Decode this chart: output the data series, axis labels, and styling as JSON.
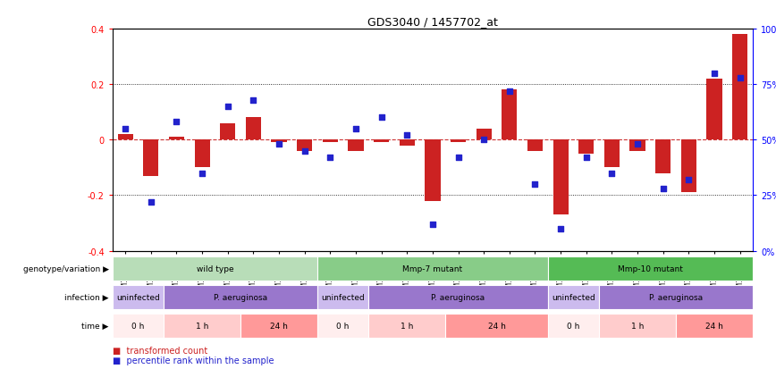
{
  "title": "GDS3040 / 1457702_at",
  "samples": [
    "GSM196062",
    "GSM196063",
    "GSM196064",
    "GSM196065",
    "GSM196066",
    "GSM196067",
    "GSM196068",
    "GSM196069",
    "GSM196070",
    "GSM196071",
    "GSM196072",
    "GSM196073",
    "GSM196074",
    "GSM196075",
    "GSM196076",
    "GSM196077",
    "GSM196078",
    "GSM196079",
    "GSM196080",
    "GSM196081",
    "GSM196082",
    "GSM196083",
    "GSM196084",
    "GSM196085",
    "GSM196086"
  ],
  "bar_values": [
    0.02,
    -0.13,
    0.01,
    -0.1,
    0.06,
    0.08,
    -0.01,
    -0.04,
    -0.01,
    -0.04,
    -0.01,
    -0.02,
    -0.22,
    -0.01,
    0.04,
    0.18,
    -0.04,
    -0.27,
    -0.05,
    -0.1,
    -0.04,
    -0.12,
    -0.19,
    0.22,
    0.38
  ],
  "dot_values": [
    55,
    22,
    58,
    35,
    65,
    68,
    48,
    45,
    42,
    55,
    60,
    52,
    12,
    42,
    50,
    72,
    30,
    10,
    42,
    35,
    48,
    28,
    32,
    80,
    78
  ],
  "genotype_groups": [
    {
      "label": "wild type",
      "start": 0,
      "end": 8,
      "color": "#b8ddb8"
    },
    {
      "label": "Mmp-7 mutant",
      "start": 8,
      "end": 17,
      "color": "#88cc88"
    },
    {
      "label": "Mmp-10 mutant",
      "start": 17,
      "end": 25,
      "color": "#55bb55"
    }
  ],
  "infection_groups": [
    {
      "label": "uninfected",
      "start": 0,
      "end": 2,
      "color": "#ccbbee"
    },
    {
      "label": "P. aeruginosa",
      "start": 2,
      "end": 8,
      "color": "#9977cc"
    },
    {
      "label": "uninfected",
      "start": 8,
      "end": 10,
      "color": "#ccbbee"
    },
    {
      "label": "P. aeruginosa",
      "start": 10,
      "end": 17,
      "color": "#9977cc"
    },
    {
      "label": "uninfected",
      "start": 17,
      "end": 19,
      "color": "#ccbbee"
    },
    {
      "label": "P. aeruginosa",
      "start": 19,
      "end": 25,
      "color": "#9977cc"
    }
  ],
  "time_groups": [
    {
      "label": "0 h",
      "start": 0,
      "end": 2,
      "color": "#ffeeee"
    },
    {
      "label": "1 h",
      "start": 2,
      "end": 5,
      "color": "#ffcccc"
    },
    {
      "label": "24 h",
      "start": 5,
      "end": 8,
      "color": "#ff9999"
    },
    {
      "label": "0 h",
      "start": 8,
      "end": 10,
      "color": "#ffeeee"
    },
    {
      "label": "1 h",
      "start": 10,
      "end": 13,
      "color": "#ffcccc"
    },
    {
      "label": "24 h",
      "start": 13,
      "end": 17,
      "color": "#ff9999"
    },
    {
      "label": "0 h",
      "start": 17,
      "end": 19,
      "color": "#ffeeee"
    },
    {
      "label": "1 h",
      "start": 19,
      "end": 22,
      "color": "#ffcccc"
    },
    {
      "label": "24 h",
      "start": 22,
      "end": 25,
      "color": "#ff9999"
    }
  ],
  "bar_color": "#cc2222",
  "dot_color": "#2222cc",
  "ylim": [
    -0.4,
    0.4
  ],
  "y2lim": [
    0,
    100
  ],
  "yticks": [
    -0.4,
    -0.2,
    0.0,
    0.2,
    0.4
  ],
  "ytick_labels": [
    "-0.4",
    "-0.2",
    "0",
    "0.2",
    "0.4"
  ],
  "y2ticks": [
    0,
    25,
    50,
    75,
    100
  ],
  "y2ticklabels": [
    "0%",
    "25%",
    "50%",
    "75%",
    "100%"
  ],
  "dotted_lines": [
    -0.2,
    0.2
  ],
  "zero_line_color": "#cc3333",
  "background_color": "#ffffff"
}
